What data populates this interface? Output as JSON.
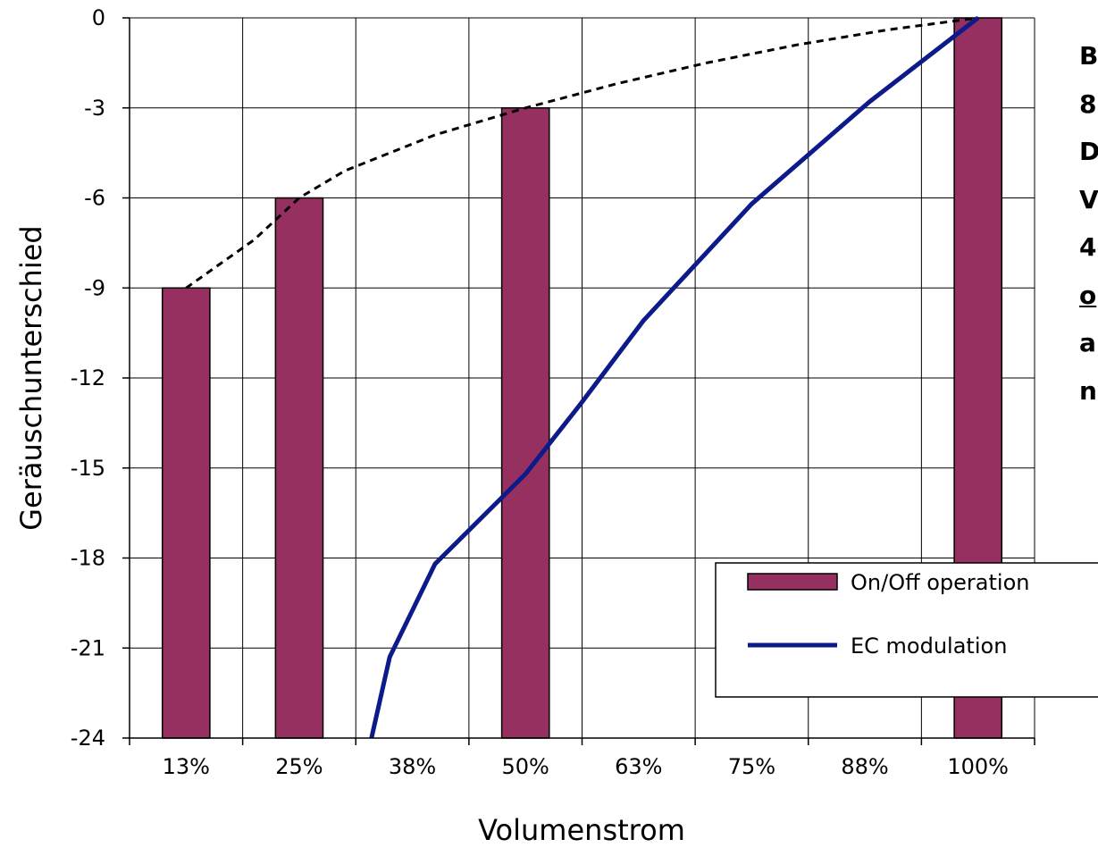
{
  "chart_data": {
    "type": "bar",
    "title": "",
    "xlabel": "Volumenstrom",
    "ylabel": "Geräuschunterschied",
    "ylim": [
      -24,
      0
    ],
    "yticks": [
      "0",
      "-3",
      "-6",
      "-9",
      "-12",
      "-15",
      "-18",
      "-21",
      "-24"
    ],
    "categories": [
      "13%",
      "25%",
      "38%",
      "50%",
      "63%",
      "75%",
      "88%",
      "100%"
    ],
    "grid": true,
    "legend_position": "bottom-right",
    "series": [
      {
        "name": "On/Off operation",
        "kind": "bar",
        "color": "#953060",
        "x": [
          "13%",
          "25%",
          "50%",
          "100%"
        ],
        "values": [
          -9,
          -6,
          -3,
          0
        ]
      },
      {
        "name": "EC modulation",
        "kind": "line",
        "color": "#0c1a8a",
        "x": [
          0.3,
          0.35,
          0.4,
          0.5,
          0.56,
          0.63,
          0.75,
          0.88,
          1.0
        ],
        "values": [
          -28,
          -21.3,
          -18.2,
          -15.2,
          -12.9,
          -10.1,
          -6.2,
          -2.8,
          0
        ]
      },
      {
        "kind": "dashed-line",
        "color": "#000000",
        "x": [
          0.125,
          0.2,
          0.25,
          0.3,
          0.4,
          0.5,
          0.6,
          0.7,
          0.8,
          0.9,
          1.0
        ],
        "values": [
          -9,
          -7.4,
          -6,
          -5.1,
          -3.9,
          -3,
          -2.2,
          -1.5,
          -0.9,
          -0.4,
          0
        ]
      }
    ]
  },
  "side_text": {
    "lines": [
      "B",
      "8",
      "D",
      "V",
      "4",
      "o",
      "a",
      "n"
    ],
    "underlined": [
      false,
      false,
      false,
      false,
      false,
      true,
      false,
      false
    ]
  }
}
